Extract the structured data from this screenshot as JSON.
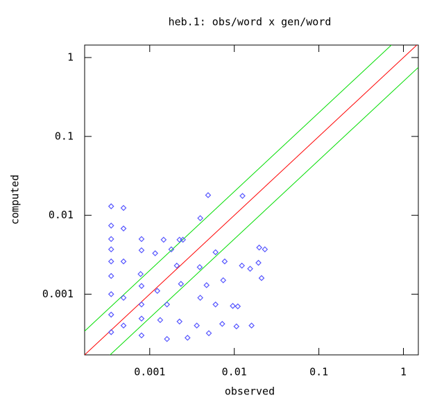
{
  "chart_data": {
    "type": "scatter",
    "title": "heb.1: obs/word x gen/word",
    "x_label": "observed",
    "y_label": "computed",
    "log_x": true,
    "log_y": true,
    "xlim": [
      0.00017,
      1.5
    ],
    "ylim": [
      0.00017,
      1.44
    ],
    "xticks": [
      0.001,
      0.01,
      0.1,
      1
    ],
    "yticks": [
      0.001,
      0.01,
      0.1,
      1
    ],
    "reference_lines": [
      {
        "factor": 1,
        "color": "#ff0000"
      },
      {
        "factor": 2,
        "color": "#00dd00"
      },
      {
        "factor": 0.5,
        "color": "#00dd00"
      }
    ],
    "series": [
      {
        "color": "#5555ff",
        "x": [
          0.00035,
          0.00049,
          0.00035,
          0.00049,
          0.00035,
          0.0008,
          0.00146,
          0.00225,
          0.00247,
          0.00396,
          0.0049,
          0.0125,
          0.006,
          0.0197,
          0.023,
          0.00035,
          0.0008,
          0.0018,
          0.00035,
          0.00049,
          0.00116,
          0.00209,
          0.0039,
          0.0077,
          0.0123,
          0.0154,
          0.0193,
          0.021,
          0.0074,
          0.0047,
          0.00234,
          0.00078,
          0.00035,
          0.0008,
          0.00123,
          0.00035,
          0.00049,
          0.0008,
          0.0016,
          0.00396,
          0.006,
          0.0096,
          0.011,
          0.00035,
          0.0008,
          0.00133,
          0.00225,
          0.0036,
          0.0072,
          0.0106,
          0.016,
          0.00035,
          0.0008,
          0.0016,
          0.0028,
          0.005,
          0.00049
        ],
        "values": [
          0.013,
          0.0124,
          0.0074,
          0.0068,
          0.005,
          0.005,
          0.0049,
          0.0049,
          0.0049,
          0.0092,
          0.018,
          0.0176,
          0.0034,
          0.0039,
          0.0037,
          0.0037,
          0.0036,
          0.0037,
          0.0026,
          0.0026,
          0.0033,
          0.0023,
          0.0022,
          0.0026,
          0.0023,
          0.0021,
          0.0025,
          0.0016,
          0.0015,
          0.0013,
          0.00135,
          0.0018,
          0.0017,
          0.00127,
          0.0011,
          0.001,
          0.0009,
          0.00074,
          0.00074,
          0.0009,
          0.00074,
          0.00071,
          0.0007,
          0.00055,
          0.00049,
          0.00047,
          0.00045,
          0.0004,
          0.00042,
          0.00039,
          0.0004,
          0.00033,
          0.0003,
          0.00027,
          0.00028,
          0.00032,
          0.0004
        ]
      }
    ]
  }
}
